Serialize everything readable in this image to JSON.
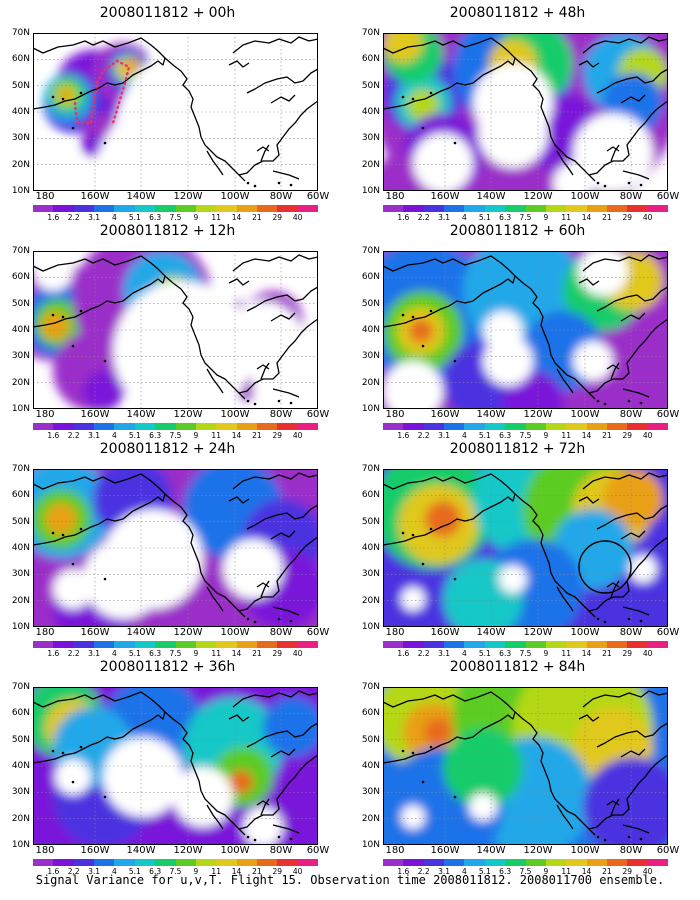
{
  "map_panels": [
    {
      "date": "2008011812",
      "lead": "00h",
      "plus": "+"
    },
    {
      "date": "2008011812",
      "lead": "48h",
      "plus": "+"
    },
    {
      "date": "2008011812",
      "lead": "12h",
      "plus": "+"
    },
    {
      "date": "2008011812",
      "lead": "60h",
      "plus": "+"
    },
    {
      "date": "2008011812",
      "lead": "24h",
      "plus": "+"
    },
    {
      "date": "2008011812",
      "lead": "72h",
      "plus": "+"
    },
    {
      "date": "2008011812",
      "lead": "36h",
      "plus": "+"
    },
    {
      "date": "2008011812",
      "lead": "84h",
      "plus": "+"
    }
  ],
  "axes": {
    "lat_labels": [
      "70N",
      "60N",
      "50N",
      "40N",
      "30N",
      "20N",
      "10N"
    ],
    "lon_labels": [
      "180",
      "160W",
      "140W",
      "120W",
      "100W",
      "80W",
      "60W"
    ]
  },
  "colorbar": {
    "labels": [
      "1.6",
      "2.2",
      "3.1",
      "4",
      "5.1",
      "6.3",
      "7.5",
      "9",
      "11",
      "14",
      "21",
      "29",
      "40"
    ],
    "colors": [
      "#9b2fc9",
      "#7a12d9",
      "#4b32e0",
      "#1e72e8",
      "#20a8e8",
      "#14c8c8",
      "#18cc6a",
      "#5ccc24",
      "#b4d818",
      "#e0c81e",
      "#e8a016",
      "#e86a1c",
      "#e83030",
      "#ea1f84"
    ]
  },
  "caption": "Signal Variance for u,v,T. Flight 15. Observation time 2008011812. 2008011700 ensemble."
}
